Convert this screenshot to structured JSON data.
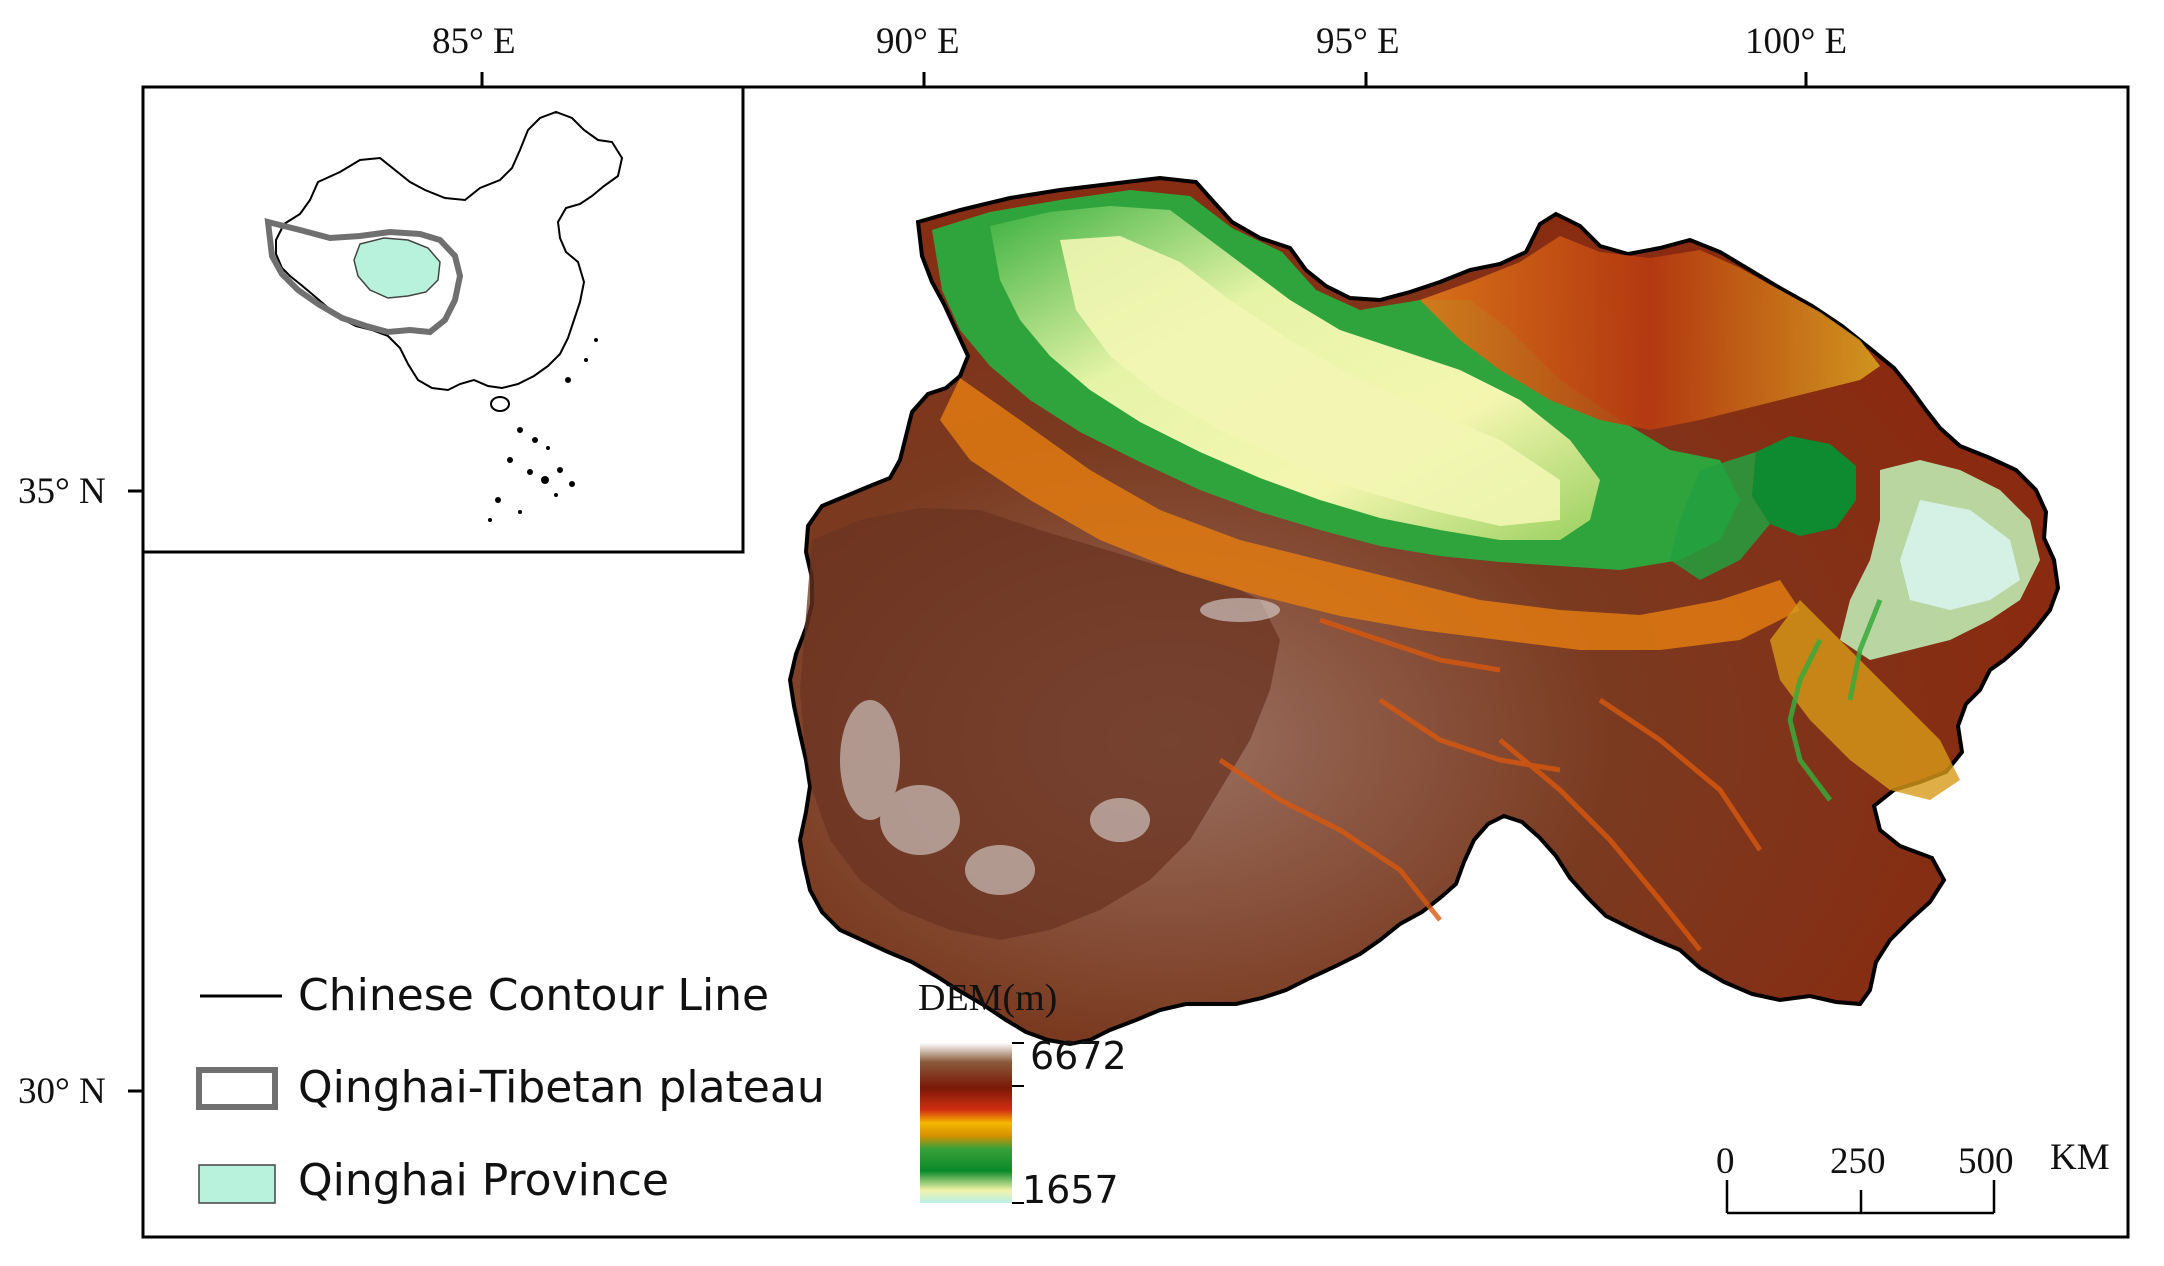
{
  "axes": {
    "longitude_labels": [
      "85° E",
      "90° E",
      "95° E",
      "100° E"
    ],
    "latitude_labels": [
      "35° N",
      "30° N"
    ]
  },
  "legend": {
    "items": [
      {
        "label": "Chinese Contour Line",
        "symbol": "line"
      },
      {
        "label": "Qinghai-Tibetan plateau",
        "symbol": "gray-outline-box"
      },
      {
        "label": "Qinghai Province",
        "symbol": "mint-fill-box"
      }
    ]
  },
  "dem_legend": {
    "title": "DEM(m)",
    "max_label": "6672",
    "min_label": "1657"
  },
  "scale_bar": {
    "labels": [
      "0",
      "250",
      "500"
    ],
    "unit": "KM"
  },
  "colors": {
    "qinghai_fill": "#b8f2dc",
    "plateau_outline": "#707070",
    "dem_high": "#6b3a24",
    "dem_low": "#e8f7c4"
  }
}
